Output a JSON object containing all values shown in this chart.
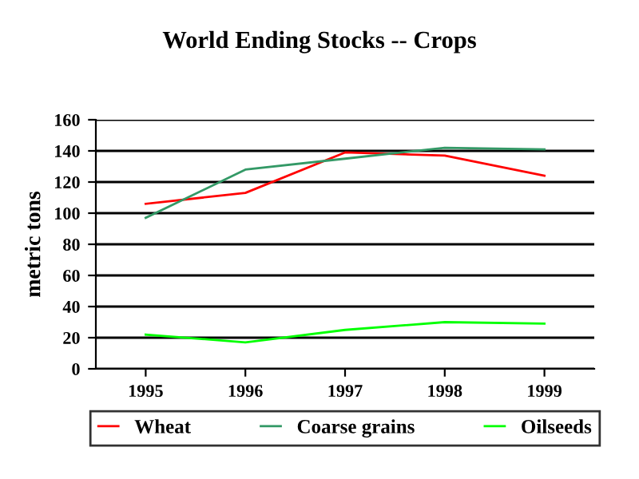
{
  "chart_data": {
    "type": "line",
    "title": "World Ending Stocks -- Crops",
    "ylabel": "metric tons",
    "categories": [
      "1995",
      "1996",
      "1997",
      "1998",
      "1999"
    ],
    "series": [
      {
        "name": "Wheat",
        "color": "#ff0000",
        "values": [
          106,
          113,
          139,
          137,
          124
        ]
      },
      {
        "name": "Coarse grains",
        "color": "#339966",
        "values": [
          97,
          128,
          135,
          142,
          141
        ]
      },
      {
        "name": "Oilseeds",
        "color": "#00ff00",
        "values": [
          22,
          17,
          25,
          30,
          29
        ]
      }
    ],
    "ylim": [
      0,
      160
    ],
    "yticks": [
      0,
      20,
      40,
      60,
      80,
      100,
      120,
      140,
      160
    ],
    "grid": "y",
    "legend": "bottom",
    "marker": "none",
    "line_style": "solid"
  }
}
